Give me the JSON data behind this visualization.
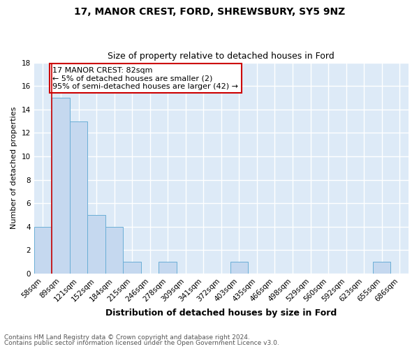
{
  "title": "17, MANOR CREST, FORD, SHREWSBURY, SY5 9NZ",
  "subtitle": "Size of property relative to detached houses in Ford",
  "xlabel": "Distribution of detached houses by size in Ford",
  "ylabel": "Number of detached properties",
  "categories": [
    "58sqm",
    "89sqm",
    "121sqm",
    "152sqm",
    "184sqm",
    "215sqm",
    "246sqm",
    "278sqm",
    "309sqm",
    "341sqm",
    "372sqm",
    "403sqm",
    "435sqm",
    "466sqm",
    "498sqm",
    "529sqm",
    "560sqm",
    "592sqm",
    "623sqm",
    "655sqm",
    "686sqm"
  ],
  "values": [
    4,
    15,
    13,
    5,
    4,
    1,
    0,
    1,
    0,
    0,
    0,
    1,
    0,
    0,
    0,
    0,
    0,
    0,
    0,
    1,
    0
  ],
  "bar_color": "#c5d8ef",
  "bar_edge_color": "#6aaed6",
  "background_color": "#ddeaf7",
  "grid_color": "#ffffff",
  "annotation_box_text": "17 MANOR CREST: 82sqm\n← 5% of detached houses are smaller (2)\n95% of semi-detached houses are larger (42) →",
  "annotation_box_color": "#ffffff",
  "annotation_box_edge_color": "#cc0000",
  "property_line_color": "#cc0000",
  "property_line_x": 1,
  "footnote_line1": "Contains HM Land Registry data © Crown copyright and database right 2024.",
  "footnote_line2": "Contains public sector information licensed under the Open Government Licence v3.0.",
  "ylim": [
    0,
    18
  ],
  "yticks": [
    0,
    2,
    4,
    6,
    8,
    10,
    12,
    14,
    16,
    18
  ],
  "title_fontsize": 10,
  "subtitle_fontsize": 9,
  "xlabel_fontsize": 9,
  "ylabel_fontsize": 8,
  "tick_fontsize": 7.5,
  "footnote_fontsize": 6.5,
  "annotation_fontsize": 8
}
